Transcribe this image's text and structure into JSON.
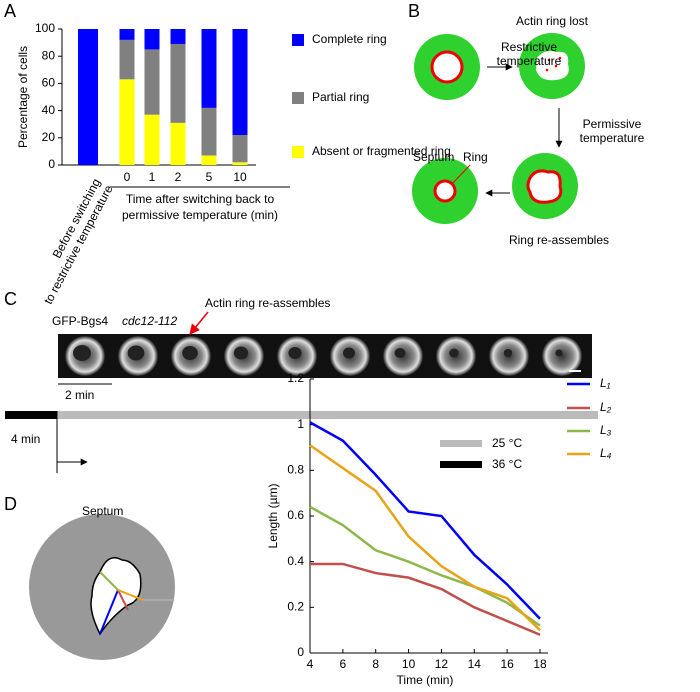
{
  "panels": {
    "A": "A",
    "B": "B",
    "C": "C",
    "D": "D"
  },
  "diagram_b": {
    "restrictive": "Restrictive temperature",
    "lost": "Actin ring lost",
    "permissive": "Permissive temperature",
    "septum": "Septum",
    "ring": "Ring",
    "reassembles": "Ring re-assembles"
  },
  "panel_c": {
    "strain": "GFP-Bgs4",
    "allele": "cdc12-112",
    "annotation": "Actin ring re-assembles",
    "scale": "2 min",
    "shift": "4 min",
    "legend_25": "25 °C",
    "legend_36": "36 °C"
  },
  "panel_d": {
    "septum": "Septum"
  },
  "chart_data": [
    {
      "type": "bar",
      "stacked": true,
      "ylabel": "Percentage of cells",
      "xlabel": "Time after switching back to permissive temperature (min)",
      "categories": [
        "Before switching to restrictive temperature",
        "0",
        "1",
        "2",
        "5",
        "10"
      ],
      "series": [
        {
          "name": "Absent or fragmented ring",
          "color": "#ffff00",
          "values": [
            0,
            63,
            37,
            31,
            7,
            2
          ]
        },
        {
          "name": "Partial ring",
          "color": "#808080",
          "values": [
            0,
            29,
            48,
            58,
            35,
            20
          ]
        },
        {
          "name": "Complete ring",
          "color": "#0000ff",
          "values": [
            100,
            8,
            15,
            11,
            58,
            78
          ]
        }
      ],
      "ylim": [
        0,
        100
      ],
      "yticks": [
        0,
        20,
        40,
        60,
        80,
        100
      ]
    },
    {
      "type": "line",
      "ylabel": "Length (µm)",
      "xlabel": "Time (min)",
      "x": [
        4,
        6,
        8,
        10,
        12,
        14,
        16,
        18
      ],
      "series": [
        {
          "name": "L₁",
          "color": "#0000ff",
          "values": [
            1.01,
            0.93,
            0.78,
            0.62,
            0.6,
            0.43,
            0.3,
            0.15
          ]
        },
        {
          "name": "L₂",
          "color": "#c0504d",
          "values": [
            0.39,
            0.39,
            0.35,
            0.33,
            0.28,
            0.2,
            0.14,
            0.08
          ]
        },
        {
          "name": "L₃",
          "color": "#8db84a",
          "values": [
            0.64,
            0.56,
            0.45,
            0.4,
            0.34,
            0.29,
            0.22,
            0.12
          ]
        },
        {
          "name": "L₄",
          "color": "#e8a317",
          "values": [
            0.91,
            0.81,
            0.71,
            0.51,
            0.38,
            0.29,
            0.24,
            0.1
          ]
        }
      ],
      "xlim": [
        4,
        18
      ],
      "xticks": [
        4,
        6,
        8,
        10,
        12,
        14,
        16,
        18
      ],
      "ylim": [
        0,
        1.2
      ],
      "yticks": [
        0,
        0.2,
        0.4,
        0.6,
        0.8,
        1,
        1.2
      ]
    }
  ]
}
